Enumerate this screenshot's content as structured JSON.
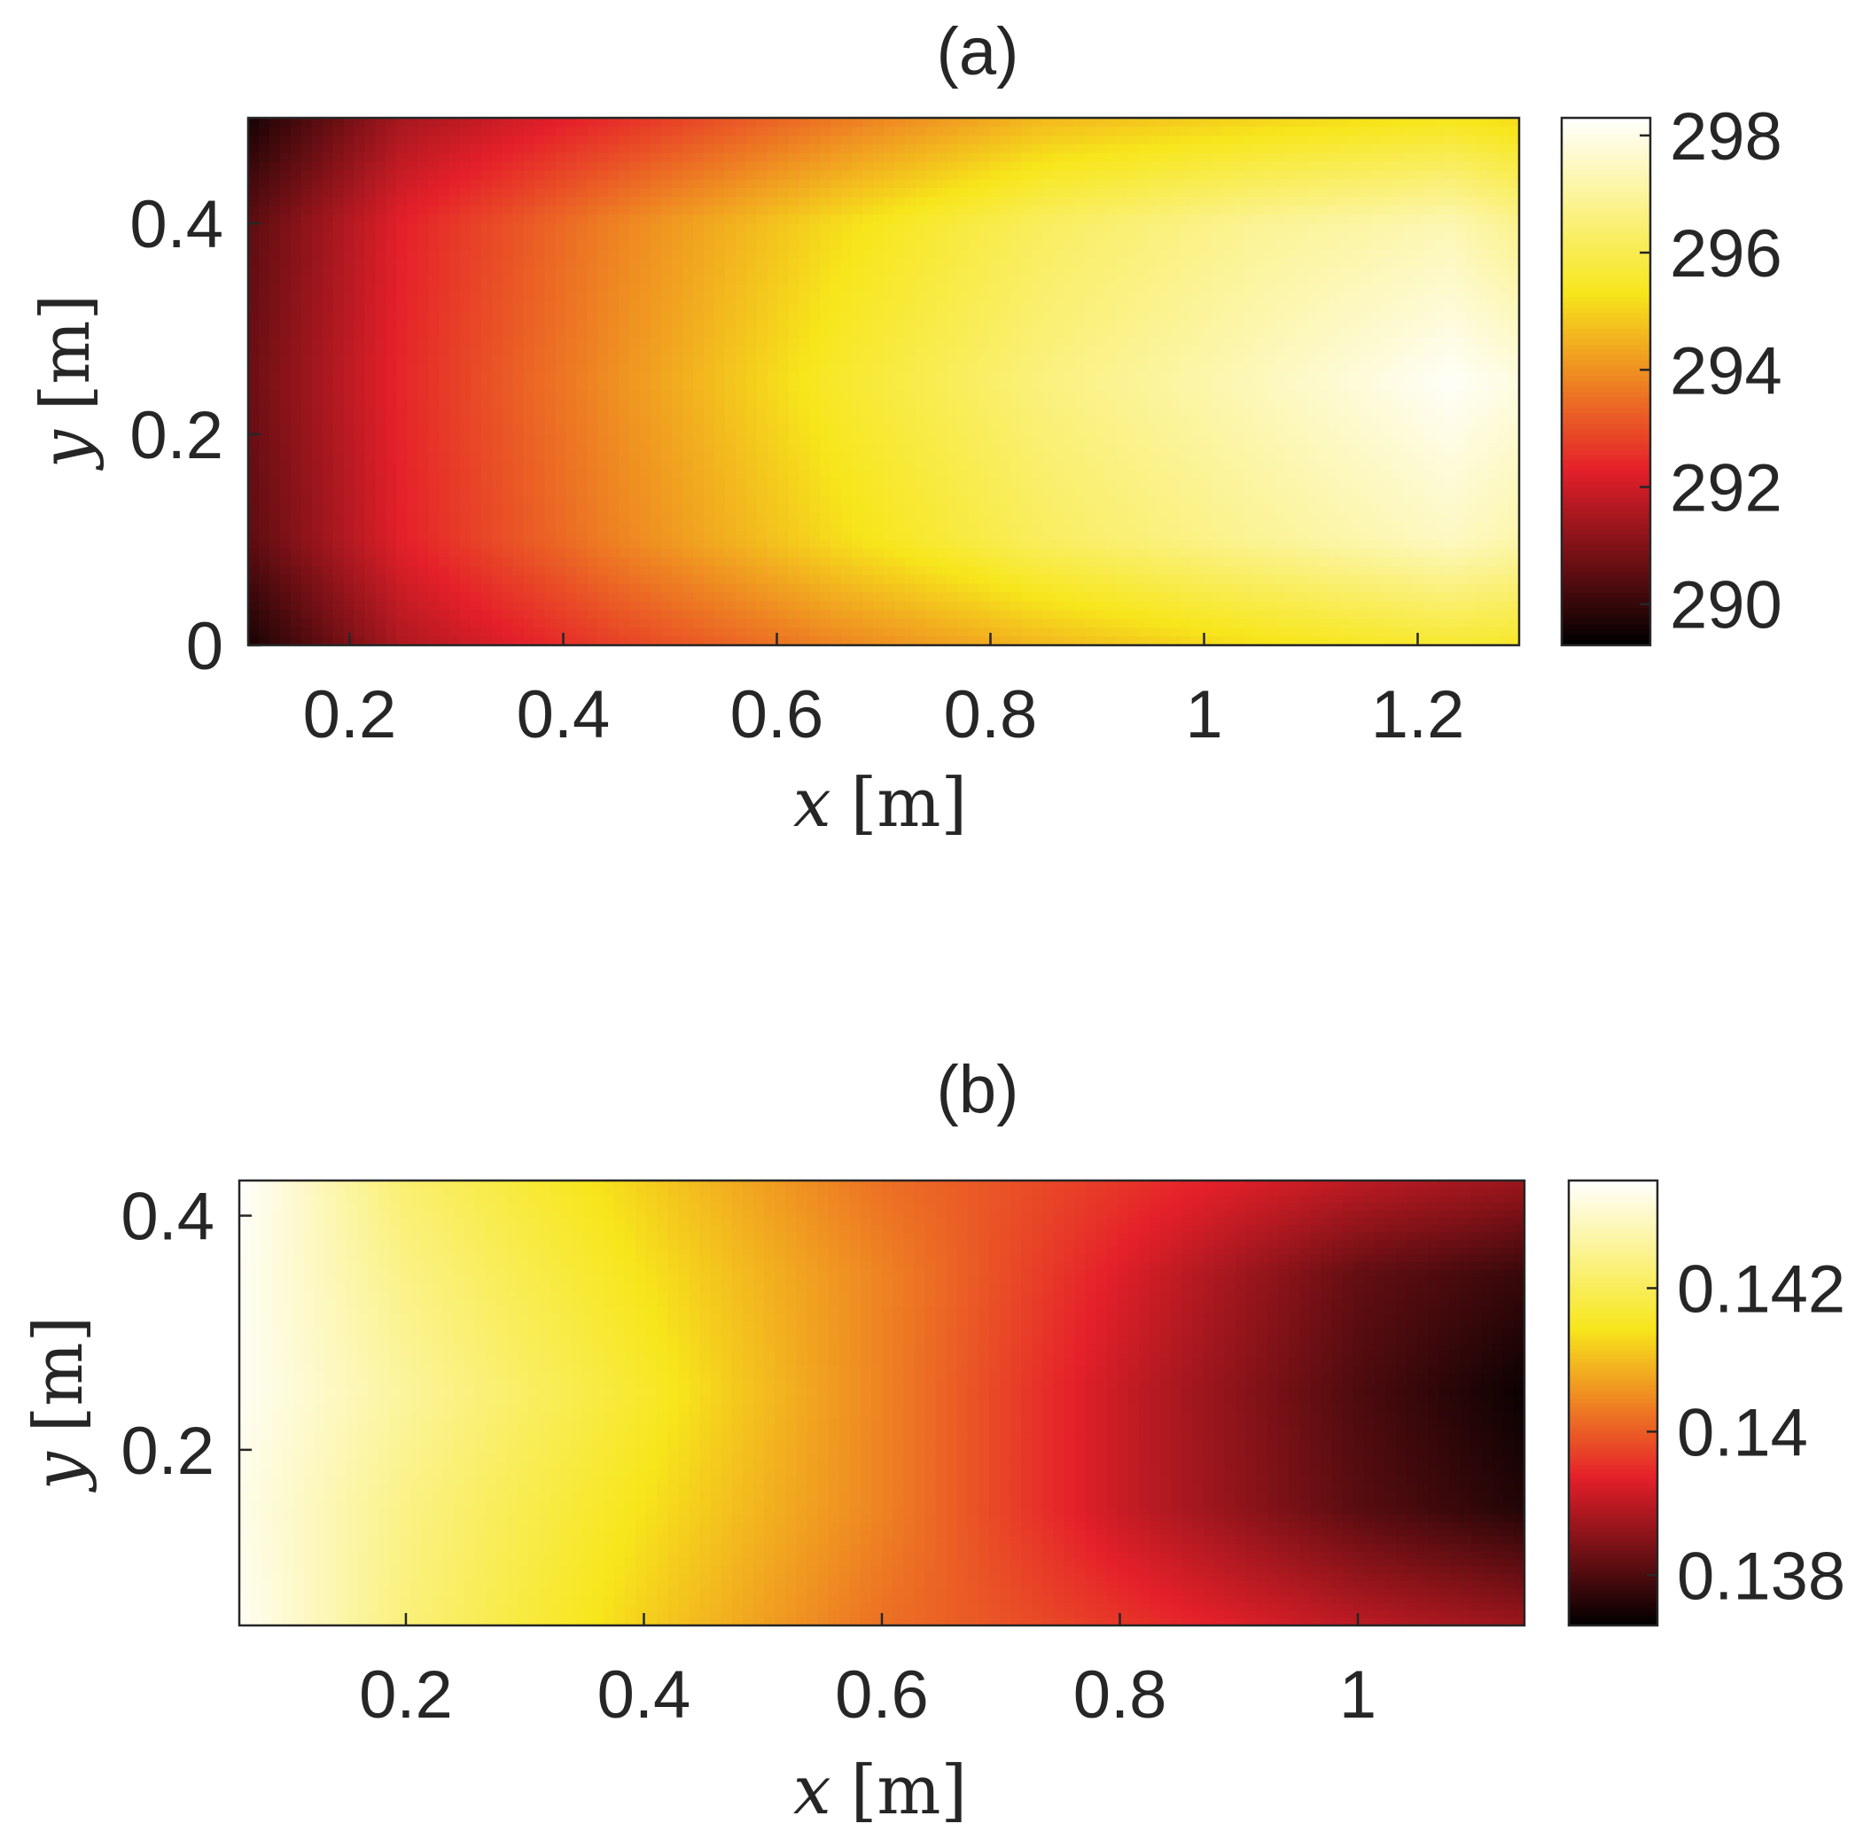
{
  "chart_data": [
    {
      "type": "heatmap",
      "title": "(a)",
      "xlabel_var": "x",
      "xlabel_unit": "[m]",
      "ylabel_var": "y",
      "ylabel_unit": "[m]",
      "xlim": [
        0.105,
        1.295
      ],
      "ylim": [
        0,
        0.5
      ],
      "xticks": [
        0.2,
        0.4,
        0.6,
        0.8,
        1,
        1.2
      ],
      "xtick_labels": [
        "0.2",
        "0.4",
        "0.6",
        "0.8",
        "1",
        "1.2"
      ],
      "yticks": [
        0,
        0.2,
        0.4
      ],
      "ytick_labels": [
        "0",
        "0.2",
        "0.4"
      ],
      "colorbar": {
        "limits": [
          289.3,
          298.3
        ],
        "ticks": [
          290,
          292,
          294,
          296,
          298
        ],
        "tick_labels": [
          "290",
          "292",
          "294",
          "296",
          "298"
        ]
      },
      "field": {
        "description_free": true,
        "x_nodes": [
          0.105,
          0.25,
          0.45,
          0.65,
          0.85,
          1.05,
          1.23,
          1.295
        ],
        "y_nodes": [
          0,
          0.1,
          0.25,
          0.4,
          0.5
        ],
        "values": [
          [
            289.6,
            291.6,
            292.8,
            293.8,
            294.6,
            295.2,
            295.6,
            295.5
          ],
          [
            290.5,
            292.3,
            293.8,
            295.1,
            296.2,
            296.9,
            297.5,
            297.2
          ],
          [
            290.7,
            292.4,
            294.0,
            295.5,
            296.6,
            297.4,
            298.2,
            297.9
          ],
          [
            290.5,
            292.3,
            293.8,
            295.1,
            296.2,
            296.9,
            297.3,
            296.8
          ],
          [
            289.6,
            291.5,
            292.5,
            293.6,
            294.6,
            295.0,
            295.3,
            295.1
          ]
        ]
      }
    },
    {
      "type": "heatmap",
      "title": "(b)",
      "xlabel_var": "x",
      "xlabel_unit": "[m]",
      "ylabel_var": "y",
      "ylabel_unit": "[m]",
      "xlim": [
        0.06,
        1.14
      ],
      "ylim": [
        0.05,
        0.43
      ],
      "xticks": [
        0.2,
        0.4,
        0.6,
        0.8,
        1
      ],
      "xtick_labels": [
        "0.2",
        "0.4",
        "0.6",
        "0.8",
        "1"
      ],
      "yticks": [
        0.2,
        0.4
      ],
      "ytick_labels": [
        "0.2",
        "0.4"
      ],
      "colorbar": {
        "limits": [
          0.1373,
          0.1435
        ],
        "ticks": [
          0.138,
          0.14,
          0.142
        ],
        "tick_labels": [
          "0.138",
          "0.14",
          "0.142"
        ]
      },
      "field": {
        "x_nodes": [
          0.06,
          0.2,
          0.4,
          0.6,
          0.8,
          1.0,
          1.14
        ],
        "y_nodes": [
          0.05,
          0.15,
          0.25,
          0.35,
          0.43
        ],
        "values": [
          [
            0.1434,
            0.1423,
            0.1412,
            0.1402,
            0.1396,
            0.139,
            0.1387
          ],
          [
            0.1433,
            0.1424,
            0.1414,
            0.1404,
            0.1391,
            0.1381,
            0.1376
          ],
          [
            0.1434,
            0.1426,
            0.1416,
            0.1404,
            0.1391,
            0.138,
            0.1374
          ],
          [
            0.1434,
            0.1424,
            0.1414,
            0.1404,
            0.1393,
            0.1382,
            0.1378
          ],
          [
            0.1435,
            0.1422,
            0.1412,
            0.1402,
            0.1396,
            0.139,
            0.1387
          ]
        ]
      }
    }
  ],
  "colormap": [
    "#000000",
    "#e5202a",
    "#f7e61b",
    "#ffffff"
  ]
}
